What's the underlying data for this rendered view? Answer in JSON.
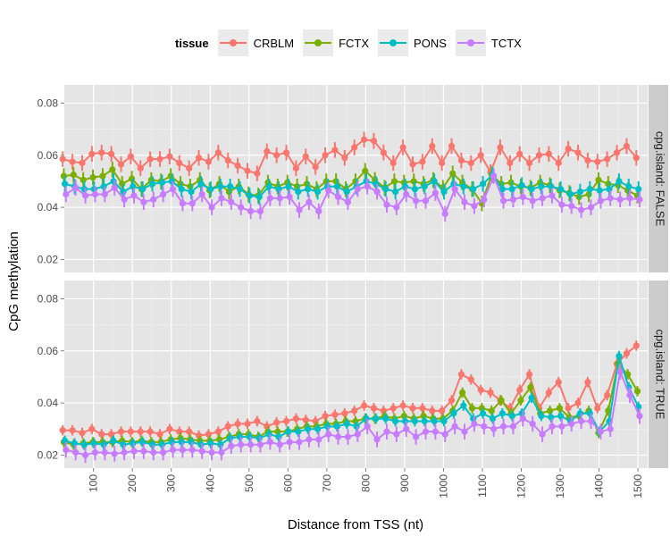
{
  "chart_data": {
    "type": "line",
    "xlabel": "Distance from TSS (nt)",
    "ylabel": "CpG methylation",
    "xlim": [
      25,
      1525
    ],
    "x_ticks": [
      100,
      200,
      300,
      400,
      500,
      600,
      700,
      800,
      900,
      1000,
      1100,
      1200,
      1300,
      1400,
      1500
    ],
    "x": [
      25,
      50,
      75,
      100,
      125,
      150,
      175,
      200,
      225,
      250,
      275,
      300,
      325,
      350,
      375,
      400,
      425,
      450,
      475,
      500,
      525,
      550,
      575,
      600,
      625,
      650,
      675,
      700,
      725,
      750,
      775,
      800,
      825,
      850,
      875,
      900,
      925,
      950,
      975,
      1000,
      1025,
      1050,
      1075,
      1100,
      1125,
      1150,
      1175,
      1200,
      1225,
      1250,
      1275,
      1300,
      1325,
      1350,
      1375,
      1400,
      1425,
      1450,
      1475,
      1500
    ],
    "legend": {
      "title": "tissue",
      "position": "top"
    },
    "colors": {
      "CRBLM": "#f8766d",
      "FCTX": "#7cae00",
      "PONS": "#00bfc4",
      "TCTX": "#c77cff"
    },
    "panels": [
      {
        "strip_label": "cpg.island: FALSE",
        "ylim": [
          0.015,
          0.087
        ],
        "y_ticks": [
          0.02,
          0.04,
          0.06,
          0.08
        ],
        "y_tick_labels": [
          "0.02",
          "0.04",
          "0.06",
          "0.08"
        ],
        "series": [
          {
            "name": "CRBLM",
            "err": 0.003,
            "values": [
              0.0585,
              0.0575,
              0.057,
              0.0605,
              0.061,
              0.0605,
              0.0565,
              0.0595,
              0.055,
              0.0585,
              0.0585,
              0.0595,
              0.057,
              0.055,
              0.059,
              0.0575,
              0.061,
              0.058,
              0.056,
              0.054,
              0.053,
              0.0615,
              0.06,
              0.061,
              0.055,
              0.0595,
              0.0555,
              0.06,
              0.062,
              0.059,
              0.063,
              0.066,
              0.0655,
              0.061,
              0.057,
              0.063,
              0.0565,
              0.0575,
              0.0635,
              0.057,
              0.0635,
              0.058,
              0.057,
              0.06,
              0.0535,
              0.063,
              0.057,
              0.0605,
              0.057,
              0.06,
              0.0605,
              0.057,
              0.0625,
              0.061,
              0.058,
              0.0575,
              0.0585,
              0.061,
              0.0635,
              0.059
            ]
          },
          {
            "name": "FCTX",
            "err": 0.003,
            "values": [
              0.052,
              0.0525,
              0.0505,
              0.0515,
              0.052,
              0.0545,
              0.049,
              0.051,
              0.047,
              0.0505,
              0.05,
              0.052,
              0.049,
              0.048,
              0.0505,
              0.0465,
              0.049,
              0.046,
              0.048,
              0.045,
              0.0445,
              0.0495,
              0.048,
              0.0495,
              0.048,
              0.049,
              0.047,
              0.05,
              0.05,
              0.047,
              0.05,
              0.054,
              0.0505,
              0.0475,
              0.05,
              0.0495,
              0.05,
              0.049,
              0.0505,
              0.0475,
              0.053,
              0.0495,
              0.047,
              0.0415,
              0.0525,
              0.049,
              0.0495,
              0.048,
              0.0475,
              0.0495,
              0.0485,
              0.0465,
              0.0455,
              0.044,
              0.045,
              0.0505,
              0.049,
              0.0485,
              0.0465,
              0.0445
            ]
          },
          {
            "name": "PONS",
            "err": 0.003,
            "values": [
              0.049,
              0.048,
              0.047,
              0.047,
              0.048,
              0.05,
              0.046,
              0.048,
              0.047,
              0.049,
              0.0495,
              0.05,
              0.047,
              0.046,
              0.049,
              0.047,
              0.048,
              0.048,
              0.047,
              0.0445,
              0.044,
              0.048,
              0.047,
              0.048,
              0.046,
              0.047,
              0.046,
              0.048,
              0.048,
              0.046,
              0.048,
              0.05,
              0.049,
              0.047,
              0.046,
              0.048,
              0.047,
              0.048,
              0.05,
              0.046,
              0.049,
              0.048,
              0.047,
              0.049,
              0.0525,
              0.047,
              0.047,
              0.0485,
              0.047,
              0.048,
              0.048,
              0.047,
              0.045,
              0.046,
              0.047,
              0.0465,
              0.047,
              0.05,
              0.048,
              0.047
            ]
          },
          {
            "name": "TCTX",
            "err": 0.003,
            "values": [
              0.045,
              0.0475,
              0.0445,
              0.045,
              0.045,
              0.0475,
              0.043,
              0.0445,
              0.042,
              0.043,
              0.045,
              0.047,
              0.0415,
              0.0415,
              0.045,
              0.04,
              0.0435,
              0.042,
              0.04,
              0.0385,
              0.0385,
              0.0435,
              0.0435,
              0.044,
              0.039,
              0.042,
              0.0385,
              0.0465,
              0.044,
              0.042,
              0.047,
              0.048,
              0.046,
              0.041,
              0.04,
              0.045,
              0.0425,
              0.0425,
              0.0455,
              0.0375,
              0.047,
              0.042,
              0.0405,
              0.043,
              0.052,
              0.0425,
              0.043,
              0.044,
              0.0425,
              0.0435,
              0.0445,
              0.041,
              0.0405,
              0.039,
              0.04,
              0.0425,
              0.0435,
              0.043,
              0.0435,
              0.043
            ]
          }
        ]
      },
      {
        "strip_label": "cpg.island: TRUE",
        "ylim": [
          0.015,
          0.087
        ],
        "y_ticks": [
          0.02,
          0.04,
          0.06,
          0.08
        ],
        "y_tick_labels": [
          "0.02",
          "0.04",
          "0.06",
          "0.08"
        ],
        "series": [
          {
            "name": "CRBLM",
            "err": 0.002,
            "values": [
              0.0295,
              0.0295,
              0.0285,
              0.03,
              0.028,
              0.028,
              0.029,
              0.029,
              0.029,
              0.029,
              0.028,
              0.03,
              0.029,
              0.029,
              0.0275,
              0.028,
              0.029,
              0.031,
              0.032,
              0.032,
              0.033,
              0.031,
              0.0325,
              0.033,
              0.034,
              0.0335,
              0.033,
              0.035,
              0.0355,
              0.036,
              0.037,
              0.039,
              0.038,
              0.037,
              0.038,
              0.039,
              0.038,
              0.038,
              0.037,
              0.037,
              0.041,
              0.051,
              0.049,
              0.045,
              0.044,
              0.041,
              0.038,
              0.045,
              0.051,
              0.038,
              0.044,
              0.048,
              0.038,
              0.04,
              0.048,
              0.038,
              0.043,
              0.055,
              0.059,
              0.062
            ]
          },
          {
            "name": "FCTX",
            "err": 0.002,
            "values": [
              0.025,
              0.024,
              0.0245,
              0.025,
              0.025,
              0.025,
              0.0255,
              0.025,
              0.0255,
              0.025,
              0.025,
              0.026,
              0.0265,
              0.026,
              0.0255,
              0.0255,
              0.026,
              0.027,
              0.028,
              0.028,
              0.027,
              0.029,
              0.029,
              0.029,
              0.03,
              0.031,
              0.031,
              0.032,
              0.032,
              0.033,
              0.033,
              0.034,
              0.034,
              0.035,
              0.034,
              0.035,
              0.034,
              0.035,
              0.034,
              0.034,
              0.037,
              0.044,
              0.038,
              0.038,
              0.037,
              0.041,
              0.036,
              0.041,
              0.046,
              0.036,
              0.037,
              0.038,
              0.0345,
              0.035,
              0.037,
              0.0285,
              0.037,
              0.055,
              0.051,
              0.0445
            ]
          },
          {
            "name": "PONS",
            "err": 0.002,
            "values": [
              0.0255,
              0.0245,
              0.024,
              0.0245,
              0.024,
              0.0255,
              0.024,
              0.0245,
              0.025,
              0.024,
              0.024,
              0.025,
              0.025,
              0.025,
              0.024,
              0.0245,
              0.024,
              0.0265,
              0.027,
              0.027,
              0.0265,
              0.028,
              0.027,
              0.029,
              0.029,
              0.03,
              0.03,
              0.031,
              0.031,
              0.032,
              0.031,
              0.034,
              0.034,
              0.034,
              0.033,
              0.033,
              0.033,
              0.033,
              0.033,
              0.033,
              0.036,
              0.039,
              0.034,
              0.036,
              0.034,
              0.036,
              0.035,
              0.036,
              0.042,
              0.035,
              0.0345,
              0.035,
              0.033,
              0.036,
              0.036,
              0.029,
              0.033,
              0.058,
              0.046,
              0.0385
            ]
          },
          {
            "name": "TCTX",
            "err": 0.003,
            "values": [
              0.022,
              0.021,
              0.02,
              0.021,
              0.021,
              0.0205,
              0.021,
              0.0215,
              0.0215,
              0.021,
              0.021,
              0.022,
              0.022,
              0.022,
              0.0215,
              0.021,
              0.021,
              0.0235,
              0.024,
              0.024,
              0.024,
              0.025,
              0.024,
              0.025,
              0.025,
              0.026,
              0.026,
              0.028,
              0.027,
              0.027,
              0.028,
              0.031,
              0.026,
              0.029,
              0.028,
              0.03,
              0.027,
              0.029,
              0.029,
              0.028,
              0.031,
              0.029,
              0.032,
              0.031,
              0.03,
              0.031,
              0.031,
              0.034,
              0.032,
              0.028,
              0.031,
              0.031,
              0.032,
              0.033,
              0.033,
              0.029,
              0.03,
              0.052,
              0.043,
              0.035
            ]
          }
        ]
      }
    ]
  }
}
